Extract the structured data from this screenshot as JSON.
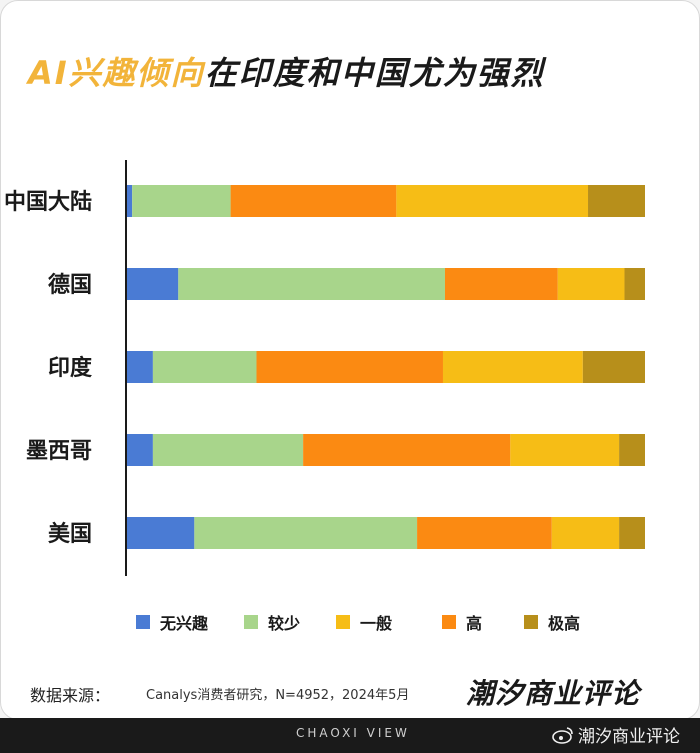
{
  "title": {
    "highlight": "AI兴趣倾向",
    "rest": "在印度和中国尤为强烈"
  },
  "legend": [
    {
      "label": "无兴趣",
      "color": "#4a7bd4"
    },
    {
      "label": "较少",
      "color": "#a8d58b"
    },
    {
      "label": "一般",
      "color": "#f6bd16"
    },
    {
      "label": "高",
      "color": "#fb8a12"
    },
    {
      "label": "极高",
      "color": "#b78f1b"
    }
  ],
  "chart_data": {
    "type": "bar",
    "orientation": "horizontal",
    "stacked": true,
    "normalized": true,
    "categories": [
      "中国大陆",
      "德国",
      "印度",
      "墨西哥",
      "美国"
    ],
    "series": [
      {
        "name": "无兴趣",
        "color": "#4a7bd4",
        "values": [
          1,
          10,
          5,
          5,
          13
        ]
      },
      {
        "name": "较少",
        "color": "#a8d58b",
        "values": [
          19,
          52,
          20,
          29,
          43
        ]
      },
      {
        "name": "高",
        "color": "#fb8a12",
        "values": [
          32,
          22,
          36,
          40,
          26
        ]
      },
      {
        "name": "一般",
        "color": "#f6bd16",
        "values": [
          37,
          13,
          27,
          21,
          13
        ]
      },
      {
        "name": "极高",
        "color": "#b78f1b",
        "values": [
          11,
          4,
          12,
          5,
          5
        ]
      }
    ],
    "xlim": [
      0,
      100
    ],
    "grid": false,
    "legend_position": "bottom"
  },
  "source": {
    "label": "数据来源：",
    "text": "Canalys消费者研究，N=4952，2024年5月"
  },
  "brand": "潮汐商业评论",
  "footer": {
    "tag": "CHAOXI VIEW",
    "watermark": "潮汐商业评论"
  }
}
